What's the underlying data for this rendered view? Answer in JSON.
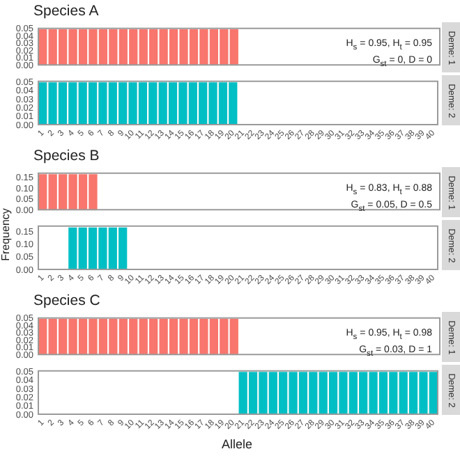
{
  "chart_data": [
    {
      "type": "bar",
      "title": "Species A",
      "y2label": "Deme: 1",
      "tick_labels": "y",
      "categories": [
        "1",
        "2",
        "3",
        "4",
        "5",
        "6",
        "7",
        "8",
        "9",
        "10",
        "11",
        "12",
        "13",
        "14",
        "15",
        "16",
        "17",
        "18",
        "19",
        "20",
        "21",
        "22",
        "23",
        "24",
        "25",
        "26",
        "27",
        "28",
        "29",
        "30",
        "31",
        "32",
        "33",
        "34",
        "35",
        "36",
        "37",
        "38",
        "39",
        "40"
      ],
      "values": [
        0.05,
        0.05,
        0.05,
        0.05,
        0.05,
        0.05,
        0.05,
        0.05,
        0.05,
        0.05,
        0.05,
        0.05,
        0.05,
        0.05,
        0.05,
        0.05,
        0.05,
        0.05,
        0.05,
        0.05,
        0,
        0,
        0,
        0,
        0,
        0,
        0,
        0,
        0,
        0,
        0,
        0,
        0,
        0,
        0,
        0,
        0,
        0,
        0,
        0
      ],
      "color": "#f8766d",
      "ylim": [
        0,
        0.052
      ],
      "yticks": [
        {
          "value": 0,
          "label": "0.00"
        },
        {
          "value": 0.01,
          "label": "0.01"
        },
        {
          "value": 0.02,
          "label": "0.02"
        },
        {
          "value": 0.03,
          "label": "0.03"
        },
        {
          "value": 0.04,
          "label": "0.04"
        },
        {
          "value": 0.05,
          "label": "0.05"
        }
      ],
      "annotations": [
        "H$_{s}$ = 0.95, H$_{t}$ = 0.95",
        "G$_{st}$ = 0, D = 0"
      ]
    },
    {
      "type": "bar",
      "y2label": "Deme: 2",
      "categories": [
        "1",
        "2",
        "3",
        "4",
        "5",
        "6",
        "7",
        "8",
        "9",
        "10",
        "11",
        "12",
        "13",
        "14",
        "15",
        "16",
        "17",
        "18",
        "19",
        "20",
        "21",
        "22",
        "23",
        "24",
        "25",
        "26",
        "27",
        "28",
        "29",
        "30",
        "31",
        "32",
        "33",
        "34",
        "35",
        "36",
        "37",
        "38",
        "39",
        "40"
      ],
      "values": [
        0.05,
        0.05,
        0.05,
        0.05,
        0.05,
        0.05,
        0.05,
        0.05,
        0.05,
        0.05,
        0.05,
        0.05,
        0.05,
        0.05,
        0.05,
        0.05,
        0.05,
        0.05,
        0.05,
        0.05,
        0,
        0,
        0,
        0,
        0,
        0,
        0,
        0,
        0,
        0,
        0,
        0,
        0,
        0,
        0,
        0,
        0,
        0,
        0,
        0
      ],
      "color": "#00bfc4",
      "ylim": [
        0,
        0.052
      ],
      "yticks": [
        {
          "value": 0,
          "label": "0.00"
        },
        {
          "value": 0.01,
          "label": "0.01"
        },
        {
          "value": 0.02,
          "label": "0.02"
        },
        {
          "value": 0.03,
          "label": "0.03"
        },
        {
          "value": 0.04,
          "label": "0.04"
        },
        {
          "value": 0.05,
          "label": "0.05"
        }
      ]
    },
    {
      "type": "bar",
      "title": "Species B",
      "ylabel": "Frequency",
      "y2label": "Deme: 1",
      "tick_labels": "y",
      "categories": [
        "1",
        "2",
        "3",
        "4",
        "5",
        "6",
        "7",
        "8",
        "9",
        "10",
        "11",
        "12",
        "13",
        "14",
        "15",
        "16",
        "17",
        "18",
        "19",
        "20",
        "21",
        "22",
        "23",
        "24",
        "25",
        "26",
        "27",
        "28",
        "29",
        "30",
        "31",
        "32",
        "33",
        "34",
        "35",
        "36",
        "37",
        "38",
        "39",
        "40"
      ],
      "values": [
        0.167,
        0.167,
        0.167,
        0.167,
        0.167,
        0.167,
        0,
        0,
        0,
        0,
        0,
        0,
        0,
        0,
        0,
        0,
        0,
        0,
        0,
        0,
        0,
        0,
        0,
        0,
        0,
        0,
        0,
        0,
        0,
        0,
        0,
        0,
        0,
        0,
        0,
        0,
        0,
        0,
        0,
        0
      ],
      "color": "#f8766d",
      "ylim": [
        0,
        0.175
      ],
      "yticks": [
        {
          "value": 0,
          "label": "0.00"
        },
        {
          "value": 0.05,
          "label": "0.05"
        },
        {
          "value": 0.1,
          "label": "0.10"
        },
        {
          "value": 0.15,
          "label": "0.15"
        }
      ],
      "annotations": [
        "H$_{s}$ = 0.83, H$_{t}$ = 0.88",
        "G$_{st}$ = 0.05, D = 0.5"
      ]
    },
    {
      "type": "bar",
      "y2label": "Deme: 2",
      "categories": [
        "1",
        "2",
        "3",
        "4",
        "5",
        "6",
        "7",
        "8",
        "9",
        "10",
        "11",
        "12",
        "13",
        "14",
        "15",
        "16",
        "17",
        "18",
        "19",
        "20",
        "21",
        "22",
        "23",
        "24",
        "25",
        "26",
        "27",
        "28",
        "29",
        "30",
        "31",
        "32",
        "33",
        "34",
        "35",
        "36",
        "37",
        "38",
        "39",
        "40"
      ],
      "values": [
        0,
        0,
        0,
        0.167,
        0.167,
        0.167,
        0.167,
        0.167,
        0.167,
        0,
        0,
        0,
        0,
        0,
        0,
        0,
        0,
        0,
        0,
        0,
        0,
        0,
        0,
        0,
        0,
        0,
        0,
        0,
        0,
        0,
        0,
        0,
        0,
        0,
        0,
        0,
        0,
        0,
        0,
        0
      ],
      "color": "#00bfc4",
      "ylim": [
        0,
        0.175
      ],
      "yticks": [
        {
          "value": 0,
          "label": "0.00"
        },
        {
          "value": 0.05,
          "label": "0.05"
        },
        {
          "value": 0.1,
          "label": "0.10"
        },
        {
          "value": 0.15,
          "label": "0.15"
        }
      ]
    },
    {
      "type": "bar",
      "title": "Species C",
      "y2label": "Deme: 1",
      "tick_labels": "y",
      "categories": [
        "1",
        "2",
        "3",
        "4",
        "5",
        "6",
        "7",
        "8",
        "9",
        "10",
        "11",
        "12",
        "13",
        "14",
        "15",
        "16",
        "17",
        "18",
        "19",
        "20",
        "21",
        "22",
        "23",
        "24",
        "25",
        "26",
        "27",
        "28",
        "29",
        "30",
        "31",
        "32",
        "33",
        "34",
        "35",
        "36",
        "37",
        "38",
        "39",
        "40"
      ],
      "values": [
        0.05,
        0.05,
        0.05,
        0.05,
        0.05,
        0.05,
        0.05,
        0.05,
        0.05,
        0.05,
        0.05,
        0.05,
        0.05,
        0.05,
        0.05,
        0.05,
        0.05,
        0.05,
        0.05,
        0.05,
        0,
        0,
        0,
        0,
        0,
        0,
        0,
        0,
        0,
        0,
        0,
        0,
        0,
        0,
        0,
        0,
        0,
        0,
        0,
        0
      ],
      "color": "#f8766d",
      "ylim": [
        0,
        0.052
      ],
      "yticks": [
        {
          "value": 0,
          "label": "0.00"
        },
        {
          "value": 0.01,
          "label": "0.01"
        },
        {
          "value": 0.02,
          "label": "0.02"
        },
        {
          "value": 0.03,
          "label": "0.03"
        },
        {
          "value": 0.04,
          "label": "0.04"
        },
        {
          "value": 0.05,
          "label": "0.05"
        }
      ],
      "annotations": [
        "H$_{s}$ = 0.95, H$_{t}$ = 0.98",
        "G$_{st}$ = 0.03, D = 1"
      ]
    },
    {
      "type": "bar",
      "y2label": "Deme: 2",
      "xlabel": "Allele",
      "categories": [
        "1",
        "2",
        "3",
        "4",
        "5",
        "6",
        "7",
        "8",
        "9",
        "10",
        "11",
        "12",
        "13",
        "14",
        "15",
        "16",
        "17",
        "18",
        "19",
        "20",
        "21",
        "22",
        "23",
        "24",
        "25",
        "26",
        "27",
        "28",
        "29",
        "30",
        "31",
        "32",
        "33",
        "34",
        "35",
        "36",
        "37",
        "38",
        "39",
        "40"
      ],
      "values": [
        0,
        0,
        0,
        0,
        0,
        0,
        0,
        0,
        0,
        0,
        0,
        0,
        0,
        0,
        0,
        0,
        0,
        0,
        0,
        0,
        0.05,
        0.05,
        0.05,
        0.05,
        0.05,
        0.05,
        0.05,
        0.05,
        0.05,
        0.05,
        0.05,
        0.05,
        0.05,
        0.05,
        0.05,
        0.05,
        0.05,
        0.05,
        0.05,
        0.05
      ],
      "color": "#00bfc4",
      "ylim": [
        0,
        0.052
      ],
      "yticks": [
        {
          "value": 0,
          "label": "0.00"
        },
        {
          "value": 0.01,
          "label": "0.01"
        },
        {
          "value": 0.02,
          "label": "0.02"
        },
        {
          "value": 0.03,
          "label": "0.03"
        },
        {
          "value": 0.04,
          "label": "0.04"
        },
        {
          "value": 0.05,
          "label": "0.05"
        }
      ]
    }
  ]
}
